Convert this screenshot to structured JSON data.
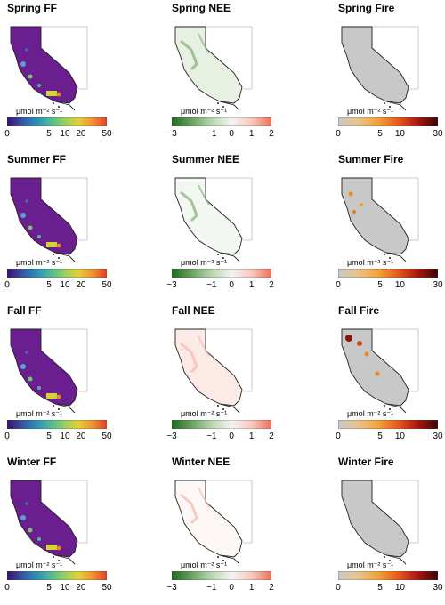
{
  "unit_label": "μmol m⁻² s⁻¹",
  "panels": [
    {
      "title": "Spring FF",
      "type": "ff",
      "fill": "#6a1e8f",
      "ticks": [
        "0",
        "5",
        "10",
        "20",
        "50"
      ]
    },
    {
      "title": "Spring NEE",
      "type": "nee",
      "fill": "#e8f0e3",
      "ticks": [
        "−3",
        "−1",
        "0",
        "1",
        "2"
      ]
    },
    {
      "title": "Spring Fire",
      "type": "fire",
      "fill": "#c8c8c8",
      "ticks": [
        "0",
        "5",
        "10",
        "30"
      ]
    },
    {
      "title": "Summer FF",
      "type": "ff",
      "fill": "#6a1e8f",
      "ticks": [
        "0",
        "5",
        "10",
        "20",
        "50"
      ]
    },
    {
      "title": "Summer NEE",
      "type": "nee",
      "fill": "#f3f7f1",
      "ticks": [
        "−3",
        "−1",
        "0",
        "1",
        "2"
      ]
    },
    {
      "title": "Summer Fire",
      "type": "fire",
      "fill": "#c8c8c8",
      "ticks": [
        "0",
        "5",
        "10",
        "30"
      ]
    },
    {
      "title": "Fall FF",
      "type": "ff",
      "fill": "#6a1e8f",
      "ticks": [
        "0",
        "5",
        "10",
        "20",
        "50"
      ]
    },
    {
      "title": "Fall NEE",
      "type": "nee",
      "fill": "#fbeae6",
      "ticks": [
        "−3",
        "−1",
        "0",
        "1",
        "2"
      ]
    },
    {
      "title": "Fall Fire",
      "type": "fire",
      "fill": "#c8c8c8",
      "ticks": [
        "0",
        "5",
        "10",
        "30"
      ]
    },
    {
      "title": "Winter FF",
      "type": "ff",
      "fill": "#6a1e8f",
      "ticks": [
        "0",
        "5",
        "10",
        "20",
        "50"
      ]
    },
    {
      "title": "Winter NEE",
      "type": "nee",
      "fill": "#fdf8f6",
      "ticks": [
        "−3",
        "−1",
        "0",
        "1",
        "2"
      ]
    },
    {
      "title": "Winter Fire",
      "type": "fire",
      "fill": "#c8c8c8",
      "ticks": [
        "0",
        "5",
        "10",
        "30"
      ]
    }
  ]
}
